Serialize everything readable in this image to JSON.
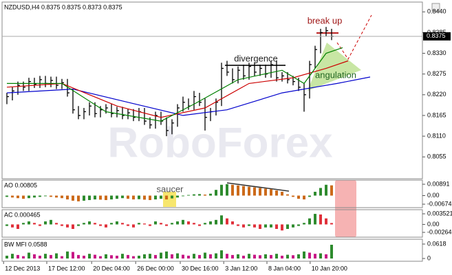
{
  "chart_data": [
    {
      "type": "ohlc",
      "title": "NZDUSD,H4 0.8375 0.8375 0.8373 0.8375",
      "color": "#000000",
      "high": [
        0.8225,
        0.824,
        0.8255,
        0.8255,
        0.8265,
        0.8265,
        0.827,
        0.827,
        0.8268,
        0.8268,
        0.8262,
        0.8262,
        0.8235,
        0.819,
        0.8185,
        0.82,
        0.82,
        0.819,
        0.8195,
        0.8195,
        0.8188,
        0.8188,
        0.8182,
        0.8182,
        0.8185,
        0.8185,
        0.816,
        0.8175,
        0.8175,
        0.816,
        0.8155,
        0.8195,
        0.8215,
        0.821,
        0.823,
        0.8225,
        0.821,
        0.8185,
        0.821,
        0.8305,
        0.831,
        0.829,
        0.8295,
        0.83,
        0.8305,
        0.8305,
        0.83,
        0.83,
        0.831,
        0.831,
        0.828,
        0.828,
        0.827,
        0.8265,
        0.825,
        0.831,
        0.835,
        0.8395,
        0.84,
        0.8395
      ],
      "low": [
        0.8195,
        0.8205,
        0.822,
        0.823,
        0.823,
        0.8238,
        0.8238,
        0.824,
        0.824,
        0.8235,
        0.8235,
        0.8215,
        0.817,
        0.8155,
        0.8155,
        0.8165,
        0.816,
        0.816,
        0.817,
        0.816,
        0.816,
        0.8155,
        0.8155,
        0.815,
        0.815,
        0.814,
        0.813,
        0.813,
        0.814,
        0.811,
        0.8115,
        0.8135,
        0.8175,
        0.818,
        0.818,
        0.819,
        0.8125,
        0.815,
        0.8165,
        0.819,
        0.827,
        0.825,
        0.825,
        0.826,
        0.826,
        0.827,
        0.827,
        0.8265,
        0.8265,
        0.8255,
        0.8255,
        0.825,
        0.8245,
        0.823,
        0.8175,
        0.821,
        0.829,
        0.833,
        0.8375,
        0.8365
      ],
      "close": [
        0.8215,
        0.823,
        0.8245,
        0.824,
        0.8255,
        0.8248,
        0.826,
        0.825,
        0.8258,
        0.8245,
        0.8252,
        0.8225,
        0.818,
        0.8165,
        0.8175,
        0.819,
        0.817,
        0.818,
        0.8185,
        0.817,
        0.8178,
        0.8165,
        0.8172,
        0.816,
        0.8175,
        0.815,
        0.814,
        0.8165,
        0.815,
        0.8125,
        0.8145,
        0.8185,
        0.82,
        0.819,
        0.8215,
        0.82,
        0.816,
        0.8175,
        0.82,
        0.829,
        0.828,
        0.826,
        0.8285,
        0.827,
        0.8295,
        0.828,
        0.829,
        0.8275,
        0.83,
        0.8265,
        0.827,
        0.826,
        0.8255,
        0.824,
        0.822,
        0.83,
        0.834,
        0.8385,
        0.839,
        0.8375
      ],
      "series": [
        {
          "color": "#0000cc",
          "x": [
            0,
            12,
            22,
            32,
            40,
            50,
            56,
            60,
            66
          ],
          "values": [
            0.8225,
            0.8235,
            0.82,
            0.8165,
            0.818,
            0.8225,
            0.824,
            0.825,
            0.8267
          ]
        },
        {
          "color": "#cc0000",
          "x": [
            0,
            10,
            20,
            28,
            36,
            44,
            52,
            58,
            62
          ],
          "values": [
            0.824,
            0.825,
            0.819,
            0.816,
            0.8185,
            0.825,
            0.8265,
            0.829,
            0.831
          ]
        },
        {
          "color": "#008000",
          "x": [
            0,
            10,
            18,
            28,
            34,
            42,
            50,
            54,
            58,
            61
          ],
          "values": [
            0.825,
            0.825,
            0.8175,
            0.815,
            0.8195,
            0.826,
            0.8285,
            0.825,
            0.833,
            0.8345
          ]
        }
      ],
      "xlim": [
        -0.875,
        75.5
      ],
      "ylim": [
        0.7997,
        0.8466
      ],
      "yticks": [
        {
          "value": 0.844,
          "label": "0.8440"
        },
        {
          "value": 0.8385,
          "label": "0.8385"
        },
        {
          "value": 0.833,
          "label": "0.8330"
        },
        {
          "value": 0.8275,
          "label": "0.8275"
        },
        {
          "value": 0.822,
          "label": "0.8220"
        },
        {
          "value": 0.8165,
          "label": "0.8165"
        },
        {
          "value": 0.811,
          "label": "0.8110"
        },
        {
          "value": 0.8055,
          "label": "0.8055"
        }
      ],
      "xticks": [
        {
          "value": -0.6,
          "label": "12 Dec 2013"
        },
        {
          "value": 7.25,
          "label": "17 Dec 12:00"
        },
        {
          "value": 15.4,
          "label": "20 Dec 04:00"
        },
        {
          "value": 23.4,
          "label": "26 Dec 00:00"
        },
        {
          "value": 31.5,
          "label": "30 Dec 16:00"
        },
        {
          "value": 39.4,
          "label": "3 Jan 12:00"
        },
        {
          "value": 47.25,
          "label": "8 Jan 04:00"
        },
        {
          "value": 55.1,
          "label": "10 Jan 20:00"
        }
      ],
      "price_line": {
        "value": 0.8375,
        "label": "0.8375"
      },
      "annotations": [
        "break up",
        "divergence",
        "angulation",
        "saucer"
      ],
      "watermark": "RoboForex"
    },
    {
      "type": "histogram",
      "title": "AO 0.00805",
      "up_color": "#2e8b2e",
      "down_color": "#cc6a1a",
      "values": [
        -0.001,
        -0.0015,
        -0.002,
        -0.0025,
        -0.002,
        -0.0015,
        -0.001,
        -0.0005,
        -0.001,
        -0.0015,
        -0.002,
        -0.003,
        -0.004,
        -0.0045,
        -0.004,
        -0.0035,
        -0.003,
        -0.0032,
        -0.0035,
        -0.003,
        -0.0025,
        -0.002,
        -0.0025,
        -0.003,
        -0.0028,
        -0.0032,
        -0.0035,
        -0.003,
        -0.0025,
        -0.003,
        -0.0022,
        -0.0015,
        -0.0005,
        0.0005,
        0.001,
        0.0012,
        0.0008,
        0.0015,
        0.0045,
        0.0085,
        0.009,
        0.0085,
        0.008,
        0.0075,
        0.007,
        0.0065,
        0.006,
        0.0055,
        0.005,
        0.004,
        0.003,
        0.001,
        -0.001,
        -0.0025,
        -0.003,
        -0.001,
        0.003,
        0.006,
        0.0085,
        0.00805
      ],
      "ylim": [
        -0.00944,
        0.01215
      ],
      "yticks": [
        0.00891,
        {
          "value": 0,
          "label": "0.00"
        },
        -0.00674
      ]
    },
    {
      "type": "histogram",
      "title": "AC 0.000465",
      "up_color": "#2e8b2e",
      "down_color": "#e0303a",
      "values": [
        -0.0005,
        -0.001,
        -0.0015,
        0.0005,
        0.001,
        0.0005,
        -0.0005,
        0.001,
        0.0015,
        0.0005,
        -0.0005,
        -0.001,
        -0.0015,
        -0.0005,
        0.0005,
        0.001,
        0.0005,
        -0.0005,
        -0.001,
        0.0005,
        0.001,
        0.0005,
        -0.0005,
        -0.001,
        0.0005,
        0.0003,
        -0.0005,
        0.001,
        0.0005,
        -0.0005,
        0.0005,
        0.001,
        0.0015,
        0.001,
        0.0005,
        -0.0005,
        0.0005,
        0.001,
        0.0015,
        0.003,
        0.002,
        0.001,
        -0.0005,
        -0.001,
        -0.0005,
        -0.001,
        -0.0015,
        -0.001,
        -0.001,
        -0.0015,
        -0.002,
        -0.0015,
        -0.001,
        -0.0005,
        0.0005,
        0.002,
        0.0035,
        0.0033,
        0.002,
        0.000465
      ],
      "ylim": [
        -0.004237,
        0.00489
      ],
      "yticks": [
        0.003521,
        {
          "value": 0,
          "label": "0.00"
        },
        -0.00264
      ]
    },
    {
      "type": "histogram",
      "title": "BW MFI 0.0588",
      "up_color": "#2e8b2e",
      "down_color": "#c71585",
      "values": [
        0.012,
        0.02,
        0.015,
        0.01,
        0.025,
        0.018,
        0.012,
        0.02,
        0.015,
        0.022,
        0.01,
        0.03,
        0.028,
        0.015,
        0.012,
        0.02,
        0.016,
        0.01,
        0.018,
        0.014,
        0.012,
        0.02,
        0.015,
        0.01,
        0.012,
        0.018,
        0.02,
        0.015,
        0.025,
        0.03,
        0.018,
        0.022,
        0.016,
        0.012,
        0.02,
        0.015,
        0.025,
        0.018,
        0.022,
        0.035,
        0.02,
        0.015,
        0.018,
        0.012,
        0.02,
        0.016,
        0.014,
        0.018,
        0.015,
        0.02,
        0.012,
        0.016,
        0.014,
        0.018,
        0.03,
        0.025,
        0.02,
        0.022,
        0.018,
        0.0588
      ],
      "ylim": [
        -0.0118,
        0.0824
      ],
      "yticks": [
        0.0618,
        0
      ]
    }
  ]
}
